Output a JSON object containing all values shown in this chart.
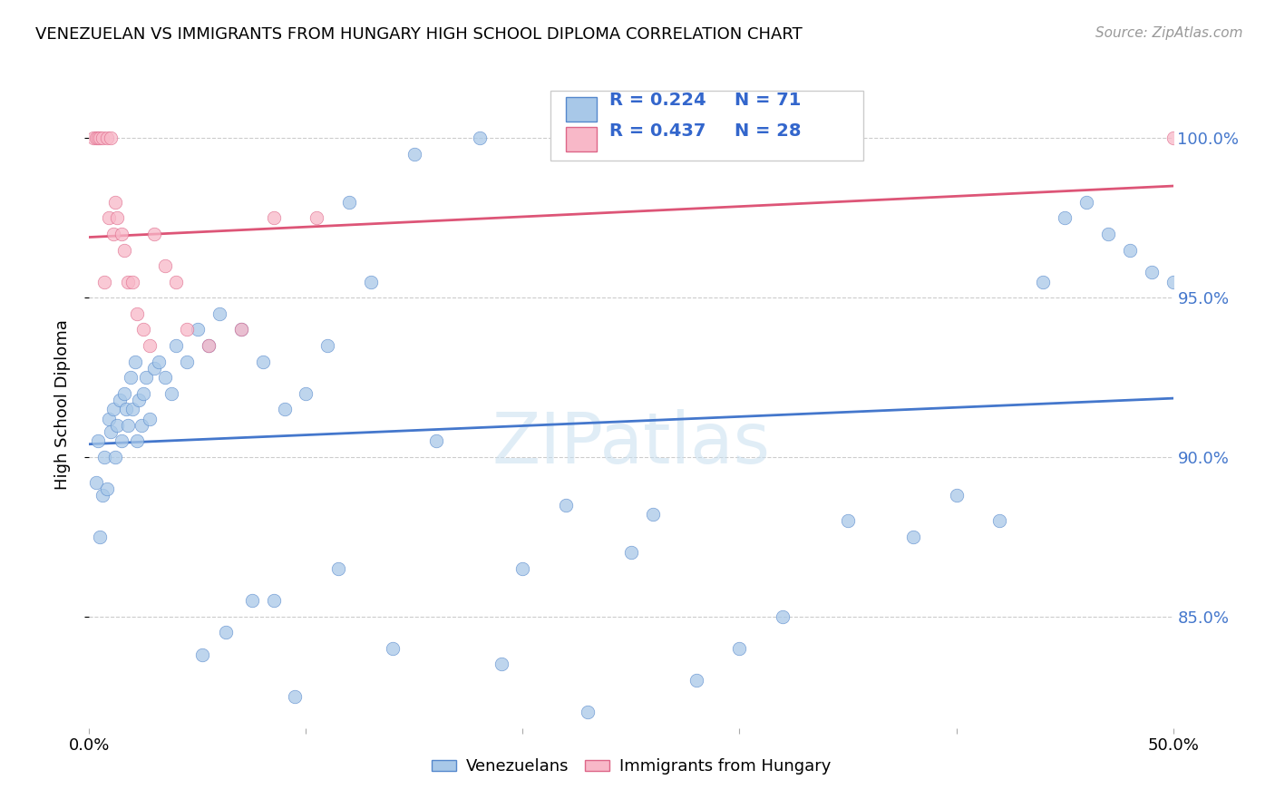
{
  "title": "VENEZUELAN VS IMMIGRANTS FROM HUNGARY HIGH SCHOOL DIPLOMA CORRELATION CHART",
  "source": "Source: ZipAtlas.com",
  "ylabel": "High School Diploma",
  "blue_label": "Venezuelans",
  "pink_label": "Immigrants from Hungary",
  "blue_r": "R = 0.224",
  "blue_n": "N = 71",
  "pink_r": "R = 0.437",
  "pink_n": "N = 28",
  "watermark": "ZIPatlas",
  "xmin": 0.0,
  "xmax": 50.0,
  "ymin": 81.5,
  "ymax": 101.8,
  "ytick_vals": [
    85.0,
    90.0,
    95.0,
    100.0
  ],
  "ytick_labels": [
    "85.0%",
    "90.0%",
    "95.0%",
    "100.0%"
  ],
  "blue_scatter_color": "#A8C8E8",
  "blue_edge_color": "#5588CC",
  "pink_scatter_color": "#F8B8C8",
  "pink_edge_color": "#DD6688",
  "blue_line_color": "#4477CC",
  "pink_line_color": "#DD5577",
  "grid_color": "#CCCCCC",
  "right_axis_color": "#4477CC",
  "title_fontsize": 13,
  "source_fontsize": 11,
  "tick_fontsize": 13,
  "ylabel_fontsize": 13,
  "scatter_size": 110,
  "scatter_alpha": 0.75,
  "line_width": 2.0,
  "ven_x": [
    0.3,
    0.4,
    0.5,
    0.6,
    0.7,
    0.8,
    0.9,
    1.0,
    1.1,
    1.2,
    1.3,
    1.4,
    1.5,
    1.6,
    1.7,
    1.8,
    1.9,
    2.0,
    2.1,
    2.2,
    2.3,
    2.4,
    2.5,
    2.6,
    2.8,
    3.0,
    3.2,
    3.5,
    3.8,
    4.0,
    4.5,
    5.0,
    5.5,
    6.0,
    7.0,
    8.0,
    9.0,
    10.0,
    11.0,
    12.0,
    13.0,
    15.0,
    18.0,
    20.0,
    22.0,
    25.0,
    28.0,
    30.0,
    35.0,
    38.0,
    40.0,
    42.0,
    44.0,
    45.0,
    46.0,
    47.0,
    48.0,
    49.0,
    50.0,
    32.0,
    8.5,
    9.5,
    5.2,
    6.3,
    7.5,
    11.5,
    14.0,
    16.0,
    19.0,
    23.0,
    26.0
  ],
  "ven_y": [
    89.2,
    90.5,
    87.5,
    88.8,
    90.0,
    89.0,
    91.2,
    90.8,
    91.5,
    90.0,
    91.0,
    91.8,
    90.5,
    92.0,
    91.5,
    91.0,
    92.5,
    91.5,
    93.0,
    90.5,
    91.8,
    91.0,
    92.0,
    92.5,
    91.2,
    92.8,
    93.0,
    92.5,
    92.0,
    93.5,
    93.0,
    94.0,
    93.5,
    94.5,
    94.0,
    93.0,
    91.5,
    92.0,
    93.5,
    98.0,
    95.5,
    99.5,
    100.0,
    86.5,
    88.5,
    87.0,
    83.0,
    84.0,
    88.0,
    87.5,
    88.8,
    88.0,
    95.5,
    97.5,
    98.0,
    97.0,
    96.5,
    95.8,
    95.5,
    85.0,
    85.5,
    82.5,
    83.8,
    84.5,
    85.5,
    86.5,
    84.0,
    90.5,
    83.5,
    82.0,
    88.2
  ],
  "hun_x": [
    0.2,
    0.3,
    0.4,
    0.5,
    0.6,
    0.7,
    0.8,
    0.9,
    1.0,
    1.1,
    1.2,
    1.3,
    1.5,
    1.6,
    1.8,
    2.0,
    2.2,
    2.5,
    2.8,
    3.0,
    3.5,
    4.0,
    4.5,
    5.5,
    7.0,
    8.5,
    10.5,
    50.0
  ],
  "hun_y": [
    100.0,
    100.0,
    100.0,
    100.0,
    100.0,
    95.5,
    100.0,
    97.5,
    100.0,
    97.0,
    98.0,
    97.5,
    97.0,
    96.5,
    95.5,
    95.5,
    94.5,
    94.0,
    93.5,
    97.0,
    96.0,
    95.5,
    94.0,
    93.5,
    94.0,
    97.5,
    97.5,
    100.0
  ]
}
